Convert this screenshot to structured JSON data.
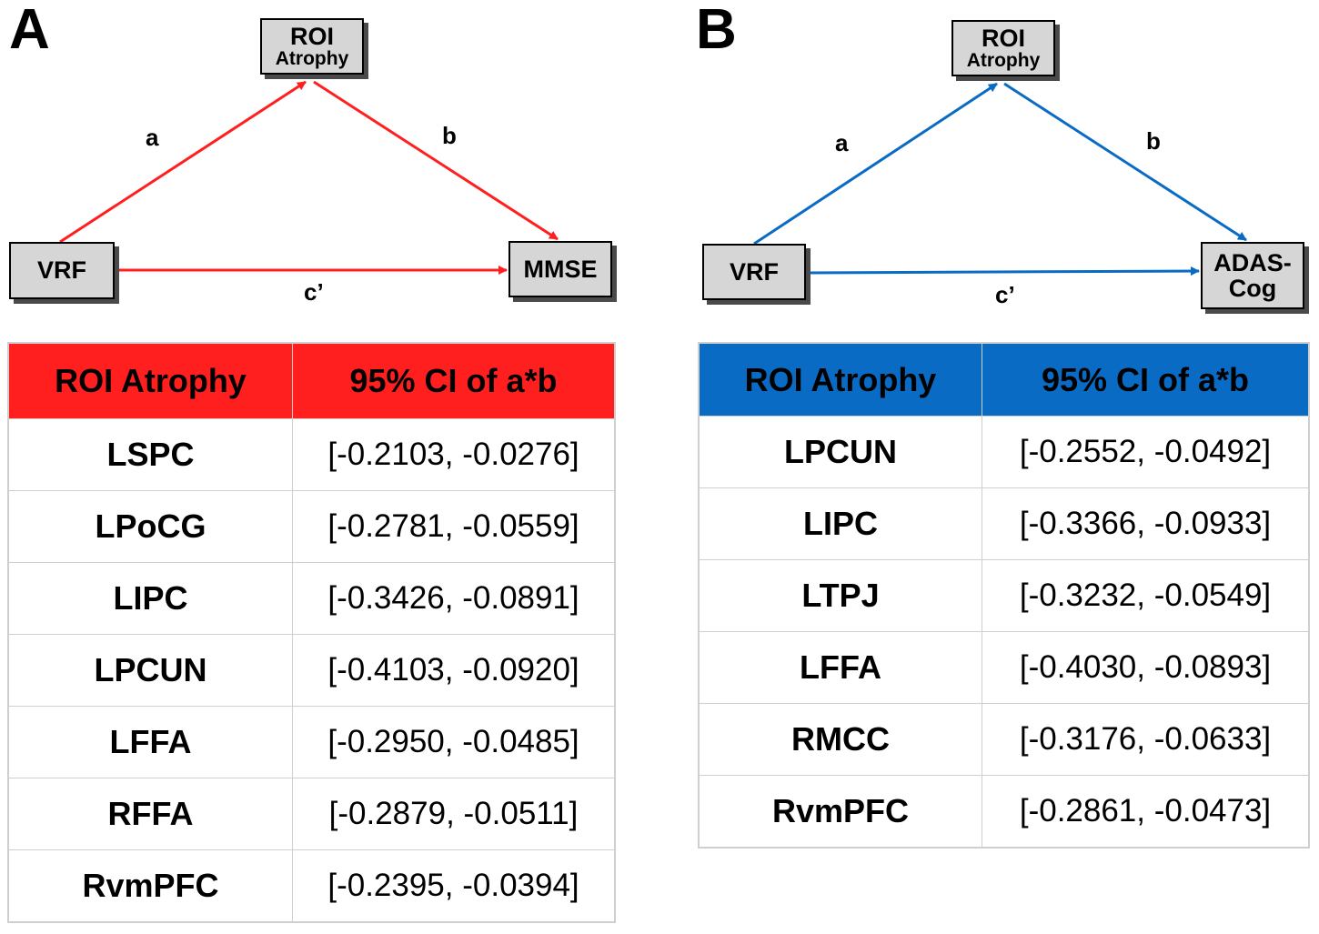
{
  "panels": [
    {
      "letter": "A",
      "color": "#ff1f1f",
      "mediator": {
        "line1": "ROI",
        "line2": "Atrophy"
      },
      "predictor": "VRF",
      "outcome_lines": [
        "MMSE"
      ],
      "paths": {
        "a": "a",
        "b": "b",
        "c": "c’"
      },
      "table": {
        "headers": [
          "ROI Atrophy",
          "95% CI of a*b"
        ],
        "rows": [
          [
            "LSPC",
            "[-0.2103, -0.0276]"
          ],
          [
            "LPoCG",
            "[-0.2781, -0.0559]"
          ],
          [
            "LIPC",
            "[-0.3426, -0.0891]"
          ],
          [
            "LPCUN",
            "[-0.4103, -0.0920]"
          ],
          [
            "LFFA",
            "[-0.2950, -0.0485]"
          ],
          [
            "RFFA",
            "[-0.2879, -0.0511]"
          ],
          [
            "RvmPFC",
            "[-0.2395, -0.0394]"
          ]
        ]
      }
    },
    {
      "letter": "B",
      "color": "#0a6bc4",
      "mediator": {
        "line1": "ROI",
        "line2": "Atrophy"
      },
      "predictor": "VRF",
      "outcome_lines": [
        "ADAS-",
        "Cog"
      ],
      "paths": {
        "a": "a",
        "b": "b",
        "c": "c’"
      },
      "table": {
        "headers": [
          "ROI Atrophy",
          "95% CI of a*b"
        ],
        "rows": [
          [
            "LPCUN",
            "[-0.2552, -0.0492]"
          ],
          [
            "LIPC",
            "[-0.3366, -0.0933]"
          ],
          [
            "LTPJ",
            "[-0.3232, -0.0549]"
          ],
          [
            "LFFA",
            "[-0.4030, -0.0893]"
          ],
          [
            "RMCC",
            "[-0.3176, -0.0633]"
          ],
          [
            "RvmPFC",
            "[-0.2861, -0.0473]"
          ]
        ]
      }
    }
  ]
}
